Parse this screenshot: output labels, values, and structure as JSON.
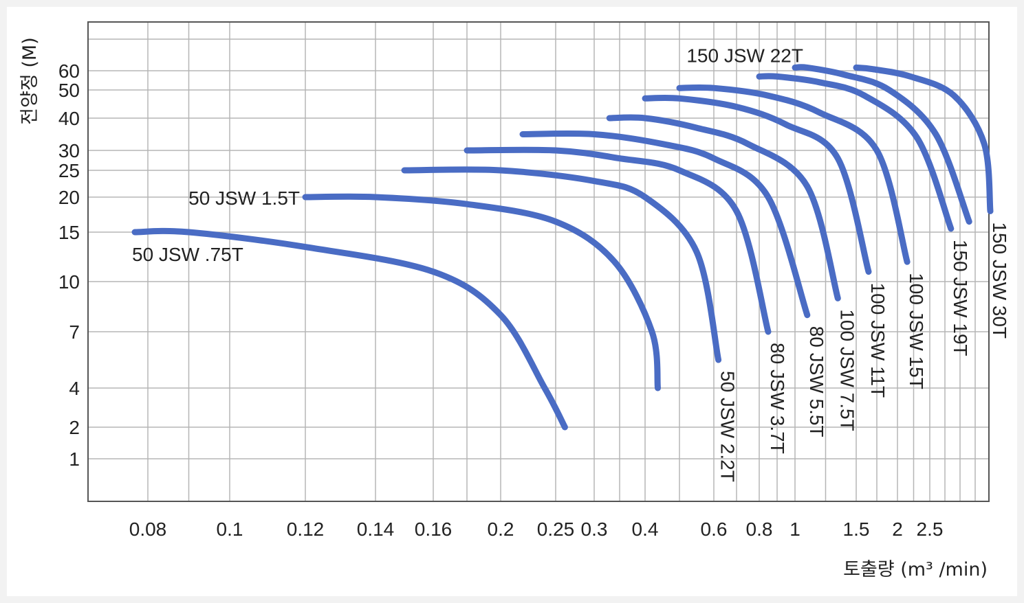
{
  "chart_data": {
    "type": "line",
    "title": "",
    "xlabel": "토출량 (m³ /min)",
    "ylabel": "전양정 (M)",
    "x_ticks": [
      {
        "value": 0.08,
        "label": "0.08"
      },
      {
        "value": 0.1,
        "label": "0.1"
      },
      {
        "value": 0.12,
        "label": "0.12"
      },
      {
        "value": 0.14,
        "label": "0.14"
      },
      {
        "value": 0.16,
        "label": "0.16"
      },
      {
        "value": 0.2,
        "label": "0.2"
      },
      {
        "value": 0.25,
        "label": "0.25"
      },
      {
        "value": 0.3,
        "label": "0.3"
      },
      {
        "value": 0.4,
        "label": "0.4"
      },
      {
        "value": 0.6,
        "label": "0.6"
      },
      {
        "value": 0.8,
        "label": "0.8"
      },
      {
        "value": 1,
        "label": "1"
      },
      {
        "value": 1.5,
        "label": "1.5"
      },
      {
        "value": 2,
        "label": "2"
      },
      {
        "value": 2.5,
        "label": "2.5"
      }
    ],
    "y_ticks": [
      {
        "value": 1,
        "label": "1"
      },
      {
        "value": 2,
        "label": "2"
      },
      {
        "value": 4,
        "label": "4"
      },
      {
        "value": 7,
        "label": "7"
      },
      {
        "value": 10,
        "label": "10"
      },
      {
        "value": 15,
        "label": "15"
      },
      {
        "value": 20,
        "label": "20"
      },
      {
        "value": 25,
        "label": "25"
      },
      {
        "value": 30,
        "label": "30"
      },
      {
        "value": 40,
        "label": "40"
      },
      {
        "value": 50,
        "label": "50"
      },
      {
        "value": 60,
        "label": "60"
      }
    ],
    "grid": true,
    "line_color": "#4a6cc4",
    "series": [
      {
        "name": "50 JSW .75T",
        "x": [
          0.077,
          0.09,
          0.12,
          0.16,
          0.2,
          0.24,
          0.262
        ],
        "y": [
          15,
          15,
          13.5,
          11,
          8,
          4,
          2
        ]
      },
      {
        "name": "50 JSW 1.5T",
        "x": [
          0.12,
          0.14,
          0.18,
          0.25,
          0.34,
          0.42,
          0.437
        ],
        "y": [
          20,
          20,
          19,
          16.5,
          12,
          7,
          4
        ]
      },
      {
        "name": "50 JSW 2.2T",
        "x": [
          0.15,
          0.2,
          0.3,
          0.4,
          0.55,
          0.62
        ],
        "y": [
          25,
          25,
          23,
          20,
          13,
          5.5
        ]
      },
      {
        "name": "80 JSW 3.7T",
        "x": [
          0.18,
          0.25,
          0.35,
          0.5,
          0.7,
          0.85
        ],
        "y": [
          30,
          30,
          28,
          25,
          18,
          7
        ]
      },
      {
        "name": "80 JSW 5.5T",
        "x": [
          0.22,
          0.3,
          0.45,
          0.6,
          0.85,
          1.1
        ],
        "y": [
          35,
          35,
          32,
          28,
          20,
          8
        ]
      },
      {
        "name": "100 JSW 7.5T",
        "x": [
          0.33,
          0.4,
          0.55,
          0.75,
          1.1,
          1.35
        ],
        "y": [
          40,
          40,
          37,
          32,
          22,
          9
        ]
      },
      {
        "name": "100 JSW 11T",
        "x": [
          0.4,
          0.5,
          0.7,
          0.95,
          1.35,
          1.65
        ],
        "y": [
          47,
          47,
          44,
          38,
          28,
          11
        ]
      },
      {
        "name": "100 JSW 15T",
        "x": [
          0.5,
          0.6,
          0.85,
          1.2,
          1.75,
          2.15
        ],
        "y": [
          51,
          51,
          48,
          42,
          30,
          12
        ]
      },
      {
        "name": "150 JSW 19T",
        "x": [
          0.8,
          0.9,
          1.2,
          1.6,
          2.3,
          2.85
        ],
        "y": [
          57,
          57,
          54,
          48,
          34,
          15.5
        ]
      },
      {
        "name": "150 JSW 22T",
        "x": [
          1.0,
          1.1,
          1.4,
          1.9,
          2.6,
          3.15
        ],
        "y": [
          62,
          62,
          58,
          50,
          35,
          16.5
        ]
      },
      {
        "name": "150 JSW 30T",
        "x": [
          1.5,
          1.7,
          2.2,
          2.9,
          3.4,
          3.5
        ],
        "y": [
          62,
          61,
          57,
          48,
          32,
          18
        ]
      }
    ]
  }
}
